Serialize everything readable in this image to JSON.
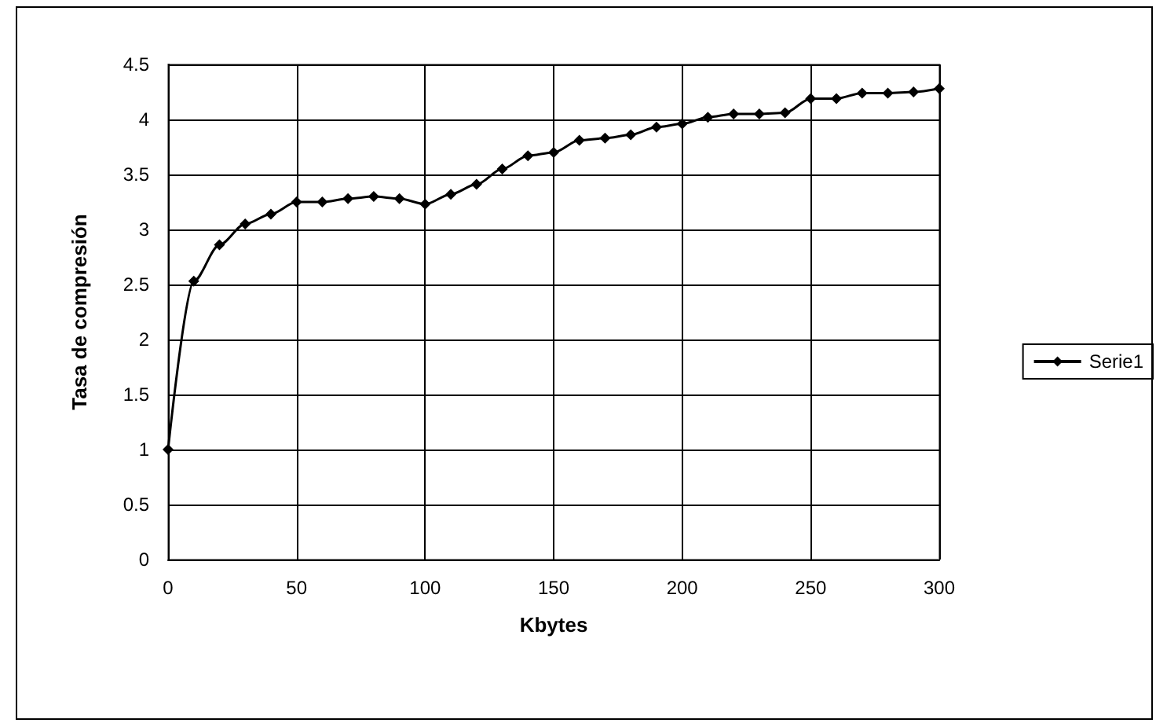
{
  "chart_data": {
    "type": "line",
    "xlabel": "Kbytes",
    "ylabel": "Tasa de compresión",
    "x": [
      0,
      10,
      20,
      30,
      40,
      50,
      60,
      70,
      80,
      90,
      100,
      110,
      120,
      130,
      140,
      150,
      160,
      170,
      180,
      190,
      200,
      210,
      220,
      230,
      240,
      250,
      260,
      270,
      280,
      290,
      300
    ],
    "series": [
      {
        "name": "Serie1",
        "color": "#000000",
        "values": [
          1.0,
          2.53,
          2.86,
          3.05,
          3.14,
          3.25,
          3.25,
          3.28,
          3.3,
          3.28,
          3.23,
          3.32,
          3.41,
          3.55,
          3.67,
          3.7,
          3.81,
          3.83,
          3.86,
          3.93,
          3.96,
          4.02,
          4.05,
          4.05,
          4.06,
          4.19,
          4.19,
          4.24,
          4.24,
          4.25,
          4.28
        ]
      }
    ],
    "xlim": [
      0,
      300
    ],
    "xticks": [
      0,
      50,
      100,
      150,
      200,
      250,
      300
    ],
    "ylim": [
      0,
      4.5
    ],
    "yticks": [
      0,
      0.5,
      1,
      1.5,
      2,
      2.5,
      3,
      3.5,
      4,
      4.5
    ],
    "grid": true,
    "legend": "right",
    "marker": "diamond",
    "line_style": "solid"
  }
}
